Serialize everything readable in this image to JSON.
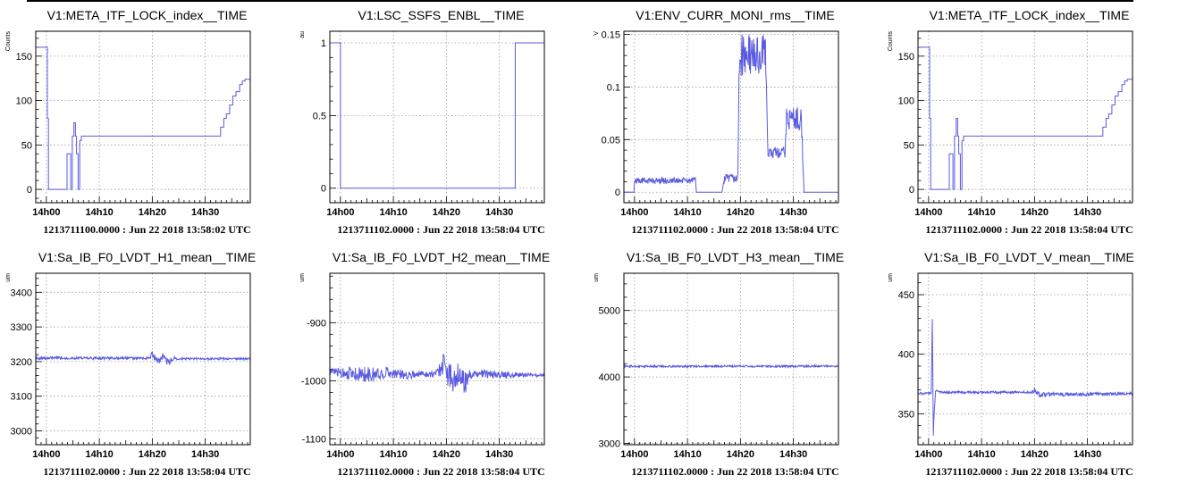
{
  "chart_data": [
    {
      "type": "line",
      "title": "V1:META_ITF_LOCK_index__TIME",
      "ylabel": "Counts",
      "xlabel": "",
      "x_tick_labels": [
        "14h00",
        "14h10",
        "14h20",
        "14h30"
      ],
      "xlim_minutes": [
        -2,
        38.5
      ],
      "ylim": [
        -15,
        178
      ],
      "y_ticks": [
        0,
        50,
        100,
        150
      ],
      "footer": "1213711100.0000 : Jun 22 2018 13:58:02 UTC",
      "grid": true,
      "color": "#5a5ae0",
      "series": [
        {
          "step": true,
          "x": [
            -2,
            0,
            0.2,
            0.4,
            1.9,
            2.1,
            3.9,
            4.1,
            4.6,
            4.9,
            5.2,
            5.5,
            5.7,
            6,
            6.3,
            6.6,
            32.6,
            32.9,
            33.5,
            34,
            34.6,
            35.2,
            35.8,
            36.5,
            37,
            37.5,
            38.5
          ],
          "y": [
            160,
            160,
            80,
            0,
            0,
            0,
            40,
            40,
            0,
            60,
            75,
            60,
            40,
            0,
            55,
            60,
            60,
            70,
            80,
            85,
            95,
            105,
            110,
            118,
            122,
            124,
            124
          ]
        }
      ]
    },
    {
      "type": "line",
      "title": "V1:LSC_SSFS_ENBL__TIME",
      "ylabel": "au",
      "xlabel": "",
      "x_tick_labels": [
        "14h00",
        "14h10",
        "14h20",
        "14h30"
      ],
      "xlim_minutes": [
        -2,
        38.5
      ],
      "ylim": [
        -0.1,
        1.08
      ],
      "y_ticks": [
        0,
        0.5,
        1
      ],
      "y_tick_labels": [
        "0",
        "0.5",
        "1"
      ],
      "footer": "1213711102.0000 : Jun 22 2018 13:58:04 UTC",
      "grid": true,
      "color": "#5a5ae0",
      "series": [
        {
          "step": true,
          "x": [
            -2,
            0,
            0,
            33,
            33,
            38.5
          ],
          "y": [
            1,
            1,
            0,
            0,
            1,
            1
          ]
        }
      ]
    },
    {
      "type": "line",
      "title": "V1:ENV_CURR_MONI_rms__TIME",
      "ylabel": "V",
      "xlabel": "",
      "x_tick_labels": [
        "14h00",
        "14h10",
        "14h20",
        "14h30"
      ],
      "xlim_minutes": [
        -2,
        38.5
      ],
      "ylim": [
        -0.01,
        0.153
      ],
      "y_ticks": [
        0,
        0.05,
        0.1,
        0.15
      ],
      "y_tick_labels": [
        "0",
        "0.05",
        "0.1",
        "0.15"
      ],
      "footer": "1213711102.0000 : Jun 22 2018 13:58:04 UTC",
      "grid": true,
      "color": "#5a5ae0",
      "series": [
        {
          "step": false,
          "x": [
            -2,
            -0.1,
            0,
            11.5,
            11.7,
            16.5,
            17,
            19.5,
            19.8,
            24.8,
            25.2,
            28.4,
            28.7,
            31.5,
            32,
            38.5
          ],
          "y": [
            0,
            0,
            0.011,
            0.011,
            0,
            0,
            0.013,
            0.013,
            0.13,
            0.13,
            0.037,
            0.037,
            0.07,
            0.07,
            0,
            0
          ],
          "noise": [
            0,
            0,
            0.003,
            0.003,
            0,
            0,
            0.004,
            0.004,
            0.02,
            0.02,
            0.006,
            0.006,
            0.012,
            0.012,
            0,
            0
          ]
        }
      ]
    },
    {
      "type": "line",
      "title": "V1:META_ITF_LOCK_index__TIME",
      "ylabel": "Counts",
      "xlabel": "",
      "x_tick_labels": [
        "14h00",
        "14h10",
        "14h20",
        "14h30"
      ],
      "xlim_minutes": [
        -2,
        38.5
      ],
      "ylim": [
        -15,
        178
      ],
      "y_ticks": [
        0,
        50,
        100,
        150
      ],
      "footer": "1213711102.0000 : Jun 22 2018 13:58:04 UTC",
      "grid": true,
      "color": "#5a5ae0",
      "series": [
        {
          "step": true,
          "x": [
            -2,
            0,
            0.2,
            0.4,
            1.9,
            2.1,
            3.9,
            4.1,
            4.6,
            4.9,
            5.2,
            5.5,
            5.7,
            6,
            6.3,
            6.6,
            32.6,
            32.9,
            33.5,
            34,
            34.6,
            35.2,
            35.8,
            36.5,
            37,
            37.5,
            38.5
          ],
          "y": [
            160,
            160,
            80,
            0,
            0,
            0,
            40,
            40,
            0,
            60,
            80,
            60,
            40,
            0,
            55,
            60,
            60,
            70,
            80,
            85,
            95,
            105,
            110,
            118,
            122,
            124,
            124
          ]
        }
      ]
    },
    {
      "type": "line",
      "title": "V1:Sa_IB_F0_LVDT_H1_mean__TIME",
      "ylabel": "um",
      "xlabel": "",
      "x_tick_labels": [
        "14h00",
        "14h10",
        "14h20",
        "14h30"
      ],
      "xlim_minutes": [
        -2,
        38.5
      ],
      "ylim": [
        2960,
        3455
      ],
      "y_ticks": [
        3000,
        3100,
        3200,
        3300,
        3400
      ],
      "footer": "1213711102.0000 : Jun 22 2018 13:58:04 UTC",
      "grid": true,
      "color": "#5a5ae0",
      "series": [
        {
          "step": false,
          "x": [
            -2,
            19.5,
            20,
            21,
            22,
            23,
            24,
            25,
            38.5
          ],
          "y": [
            3210,
            3210,
            3222,
            3200,
            3215,
            3195,
            3210,
            3208,
            3208
          ],
          "noise": [
            4,
            4,
            10,
            12,
            10,
            12,
            6,
            3,
            3
          ]
        }
      ]
    },
    {
      "type": "line",
      "title": "V1:Sa_IB_F0_LVDT_H2_mean__TIME",
      "ylabel": "um",
      "xlabel": "",
      "x_tick_labels": [
        "14h00",
        "14h10",
        "14h20",
        "14h30"
      ],
      "xlim_minutes": [
        -2,
        38.5
      ],
      "ylim": [
        -1110,
        -815
      ],
      "y_ticks": [
        -1100,
        -1000,
        -900
      ],
      "y_tick_labels": [
        "-1100",
        "-1000",
        "-900"
      ],
      "footer": "1213711102.0000 : Jun 22 2018 13:58:04 UTC",
      "grid": true,
      "color": "#5a5ae0",
      "series": [
        {
          "step": false,
          "x": [
            -2,
            0,
            3,
            6,
            9,
            12,
            15,
            18,
            19.5,
            20.5,
            21.5,
            22.5,
            23.5,
            24.5,
            25.5,
            28,
            30,
            38.5
          ],
          "y": [
            -985,
            -985,
            -988,
            -990,
            -985,
            -990,
            -988,
            -988,
            -970,
            -990,
            -995,
            -985,
            -1005,
            -990,
            -988,
            -988,
            -990,
            -990
          ],
          "noise": [
            5,
            10,
            12,
            14,
            10,
            8,
            6,
            6,
            22,
            30,
            25,
            18,
            20,
            8,
            5,
            8,
            6,
            3
          ]
        }
      ]
    },
    {
      "type": "line",
      "title": "V1:Sa_IB_F0_LVDT_H3_mean__TIME",
      "ylabel": "um",
      "xlabel": "",
      "x_tick_labels": [
        "14h00",
        "14h10",
        "14h20",
        "14h30"
      ],
      "xlim_minutes": [
        -2,
        38.5
      ],
      "ylim": [
        2980,
        5560
      ],
      "y_ticks": [
        3000,
        4000,
        5000
      ],
      "footer": "1213711102.0000 : Jun 22 2018 13:58:04 UTC",
      "grid": true,
      "color": "#5a5ae0",
      "series": [
        {
          "step": false,
          "x": [
            -2,
            38.5
          ],
          "y": [
            4160,
            4160
          ],
          "noise": [
            15,
            15
          ]
        }
      ]
    },
    {
      "type": "line",
      "title": "V1:Sa_IB_F0_LVDT_V_mean__TIME",
      "ylabel": "um",
      "xlabel": "",
      "x_tick_labels": [
        "14h00",
        "14h10",
        "14h20",
        "14h30"
      ],
      "xlim_minutes": [
        -2,
        38.5
      ],
      "ylim": [
        324,
        468
      ],
      "y_ticks": [
        350,
        400,
        450
      ],
      "footer": "1213711102.0000 : Jun 22 2018 13:58:04 UTC",
      "grid": true,
      "color": "#5a5ae0",
      "series": [
        {
          "step": false,
          "x": [
            -2,
            0.5,
            0.7,
            0.9,
            1.1,
            1.3,
            1.6,
            2.2,
            19.5,
            20,
            21,
            38.5
          ],
          "y": [
            367,
            367,
            432,
            334,
            355,
            368,
            370,
            368,
            368,
            370,
            366,
            367
          ],
          "noise": [
            1,
            1,
            3,
            3,
            2,
            1,
            1,
            1,
            1,
            3,
            2,
            1
          ]
        }
      ]
    }
  ]
}
